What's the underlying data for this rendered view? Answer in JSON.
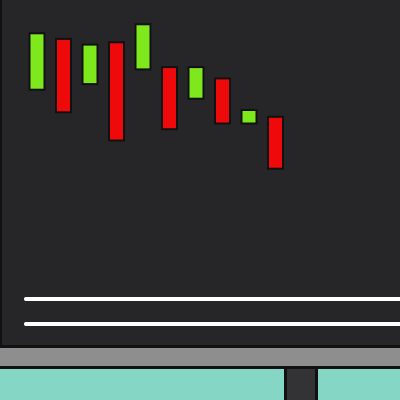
{
  "chart_data": {
    "type": "candlestick",
    "candles": [
      {
        "open": 40,
        "close": 90,
        "direction": "up"
      },
      {
        "open": 85,
        "close": 20,
        "direction": "down"
      },
      {
        "open": 45,
        "close": 80,
        "direction": "up"
      },
      {
        "open": 82,
        "close": -5,
        "direction": "down"
      },
      {
        "open": 58,
        "close": 98,
        "direction": "up"
      },
      {
        "open": 60,
        "close": 5,
        "direction": "down"
      },
      {
        "open": 32,
        "close": 60,
        "direction": "up"
      },
      {
        "open": 50,
        "close": 10,
        "direction": "down"
      },
      {
        "open": 10,
        "close": 22,
        "direction": "up"
      },
      {
        "open": 16,
        "close": -30,
        "direction": "down"
      }
    ],
    "ylim": [
      -40,
      100
    ],
    "grid": false,
    "legend": "none"
  },
  "colors": {
    "up": "#7ee81c",
    "down": "#ee0a0a",
    "outline": "#111111",
    "screen": "#262628",
    "bezel": "#8e8e8e",
    "wall": "#86d6c6",
    "stand": "#333336",
    "baseline": "#ffffff"
  },
  "icons": {
    "monitor": "monitor-icon"
  }
}
